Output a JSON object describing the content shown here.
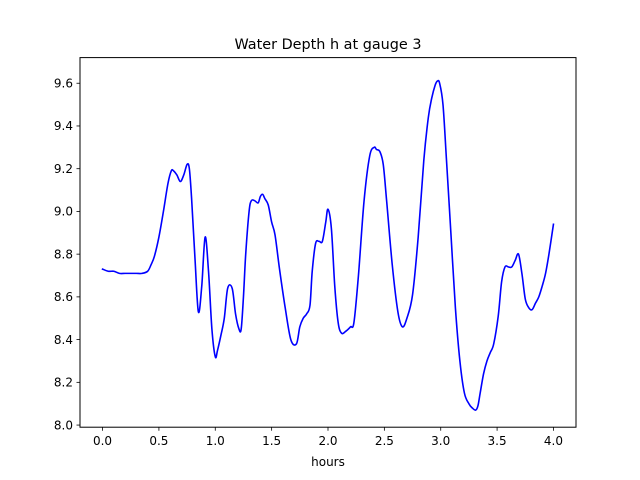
{
  "chart_data": {
    "type": "line",
    "title": "Water Depth h at gauge 3",
    "xlabel": "hours",
    "ylabel": "",
    "xlim": [
      -0.2,
      4.2
    ],
    "ylim": [
      7.99,
      9.72
    ],
    "xticks": [
      0.0,
      0.5,
      1.0,
      1.5,
      2.0,
      2.5,
      3.0,
      3.5,
      4.0
    ],
    "xtick_labels": [
      "0.0",
      "0.5",
      "1.0",
      "1.5",
      "2.0",
      "2.5",
      "3.0",
      "3.5",
      "4.0"
    ],
    "yticks": [
      8.0,
      8.2,
      8.4,
      8.6,
      8.8,
      9.0,
      9.2,
      9.4,
      9.6
    ],
    "ytick_labels": [
      "8.0",
      "8.2",
      "8.4",
      "8.6",
      "8.8",
      "9.0",
      "9.2",
      "9.4",
      "9.6"
    ],
    "grid": false,
    "legend": "none",
    "series": [
      {
        "color": "#0000ff",
        "x": [
          0.0,
          0.05,
          0.1,
          0.15,
          0.2,
          0.25,
          0.3,
          0.35,
          0.4,
          0.43,
          0.46,
          0.5,
          0.54,
          0.58,
          0.61,
          0.63,
          0.66,
          0.69,
          0.72,
          0.75,
          0.77,
          0.79,
          0.82,
          0.85,
          0.88,
          0.91,
          0.94,
          0.97,
          1.0,
          1.02,
          1.05,
          1.08,
          1.11,
          1.15,
          1.18,
          1.21,
          1.23,
          1.25,
          1.27,
          1.3,
          1.32,
          1.35,
          1.38,
          1.4,
          1.42,
          1.44,
          1.47,
          1.5,
          1.53,
          1.57,
          1.62,
          1.67,
          1.72,
          1.75,
          1.78,
          1.81,
          1.84,
          1.86,
          1.89,
          1.92,
          1.95,
          1.98,
          2.0,
          2.03,
          2.06,
          2.09,
          2.12,
          2.16,
          2.2,
          2.23,
          2.27,
          2.32,
          2.37,
          2.41,
          2.43,
          2.46,
          2.49,
          2.52,
          2.57,
          2.62,
          2.66,
          2.7,
          2.75,
          2.8,
          2.85,
          2.89,
          2.92,
          2.95,
          2.97,
          2.99,
          3.02,
          3.05,
          3.09,
          3.13,
          3.17,
          3.21,
          3.25,
          3.28,
          3.31,
          3.33,
          3.35,
          3.38,
          3.41,
          3.44,
          3.47,
          3.51,
          3.54,
          3.57,
          3.6,
          3.63,
          3.66,
          3.69,
          3.72,
          3.75,
          3.78,
          3.81,
          3.84,
          3.87,
          3.9,
          3.93,
          3.96,
          4.0
        ],
        "y": [
          8.73,
          8.72,
          8.72,
          8.71,
          8.71,
          8.71,
          8.71,
          8.71,
          8.72,
          8.75,
          8.79,
          8.88,
          9.0,
          9.13,
          9.19,
          9.19,
          9.17,
          9.14,
          9.17,
          9.22,
          9.2,
          9.06,
          8.78,
          8.53,
          8.65,
          8.88,
          8.72,
          8.45,
          8.32,
          8.35,
          8.42,
          8.5,
          8.64,
          8.64,
          8.52,
          8.45,
          8.45,
          8.6,
          8.8,
          9.0,
          9.05,
          9.05,
          9.04,
          9.07,
          9.08,
          9.06,
          9.03,
          8.95,
          8.89,
          8.73,
          8.55,
          8.4,
          8.38,
          8.46,
          8.5,
          8.52,
          8.56,
          8.72,
          8.85,
          8.86,
          8.86,
          8.95,
          9.01,
          8.92,
          8.65,
          8.48,
          8.43,
          8.44,
          8.46,
          8.48,
          8.7,
          9.05,
          9.26,
          9.3,
          9.29,
          9.28,
          9.22,
          9.05,
          8.75,
          8.53,
          8.46,
          8.5,
          8.61,
          8.88,
          9.24,
          9.44,
          9.53,
          9.59,
          9.61,
          9.6,
          9.5,
          9.25,
          8.9,
          8.55,
          8.3,
          8.15,
          8.1,
          8.08,
          8.07,
          8.09,
          8.15,
          8.24,
          8.3,
          8.34,
          8.38,
          8.51,
          8.67,
          8.74,
          8.74,
          8.74,
          8.77,
          8.8,
          8.71,
          8.59,
          8.55,
          8.54,
          8.57,
          8.6,
          8.65,
          8.71,
          8.8,
          8.94
        ]
      }
    ]
  }
}
